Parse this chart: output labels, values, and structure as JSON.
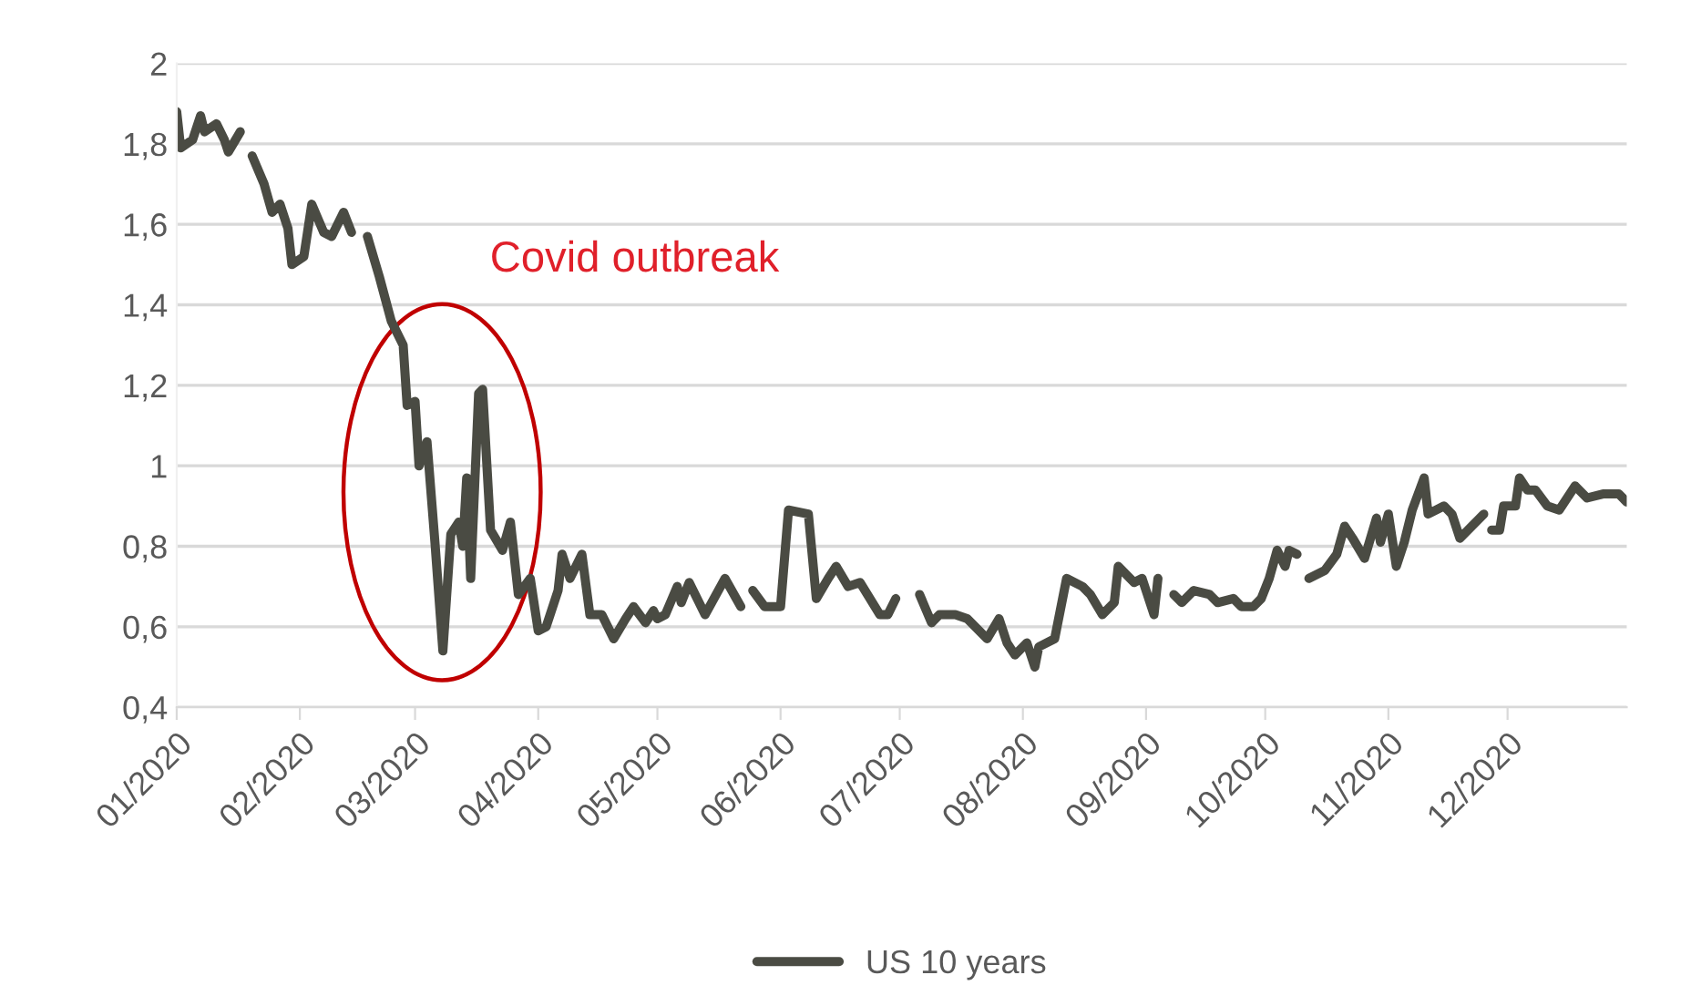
{
  "chart_data": {
    "type": "line",
    "x": [
      "2020-01-01",
      "2020-01-02",
      "2020-01-05",
      "2020-01-07",
      "2020-01-08",
      "2020-01-11",
      "2020-01-13",
      "2020-01-14",
      "2020-01-17",
      "2020-01-18",
      "2020-01-20",
      "2020-01-23",
      "2020-01-25",
      "2020-01-27",
      "2020-01-29",
      "2020-01-30",
      "2020-02-02",
      "2020-02-04",
      "2020-02-07",
      "2020-02-09",
      "2020-02-12",
      "2020-02-14",
      "2020-02-16",
      "2020-02-18",
      "2020-02-21",
      "2020-02-24",
      "2020-02-27",
      "2020-02-28",
      "2020-03-01",
      "2020-03-02",
      "2020-03-04",
      "2020-03-06",
      "2020-03-08",
      "2020-03-10",
      "2020-03-12",
      "2020-03-13",
      "2020-03-14",
      "2020-03-15",
      "2020-03-17",
      "2020-03-18",
      "2020-03-20",
      "2020-03-23",
      "2020-03-25",
      "2020-03-27",
      "2020-03-30",
      "2020-04-01",
      "2020-04-03",
      "2020-04-06",
      "2020-04-07",
      "2020-04-09",
      "2020-04-12",
      "2020-04-14",
      "2020-04-17",
      "2020-04-20",
      "2020-04-23",
      "2020-04-25",
      "2020-04-28",
      "2020-04-30",
      "2020-05-01",
      "2020-05-03",
      "2020-05-06",
      "2020-05-07",
      "2020-05-09",
      "2020-05-13",
      "2020-05-18",
      "2020-05-22",
      "2020-05-24",
      "2020-05-25",
      "2020-05-28",
      "2020-06-01",
      "2020-06-03",
      "2020-06-08",
      "2020-06-10",
      "2020-06-13",
      "2020-06-15",
      "2020-06-18",
      "2020-06-21",
      "2020-06-26",
      "2020-06-28",
      "2020-06-30",
      "2020-07-02",
      "2020-07-06",
      "2020-07-09",
      "2020-07-11",
      "2020-07-15",
      "2020-07-18",
      "2020-07-23",
      "2020-07-26",
      "2020-07-28",
      "2020-07-30",
      "2020-08-02",
      "2020-08-04",
      "2020-08-05",
      "2020-08-09",
      "2020-08-12",
      "2020-08-16",
      "2020-08-18",
      "2020-08-21",
      "2020-08-24",
      "2020-08-25",
      "2020-08-29",
      "2020-08-31",
      "2020-09-03",
      "2020-09-04",
      "2020-09-06",
      "2020-09-08",
      "2020-09-10",
      "2020-09-13",
      "2020-09-17",
      "2020-09-19",
      "2020-09-23",
      "2020-09-25",
      "2020-09-28",
      "2020-09-30",
      "2020-10-02",
      "2020-10-04",
      "2020-10-06",
      "2020-10-07",
      "2020-10-09",
      "2020-10-11",
      "2020-10-12",
      "2020-10-16",
      "2020-10-19",
      "2020-10-21",
      "2020-10-23",
      "2020-10-26",
      "2020-10-29",
      "2020-10-30",
      "2020-11-01",
      "2020-11-03",
      "2020-11-05",
      "2020-11-07",
      "2020-11-10",
      "2020-11-11",
      "2020-11-15",
      "2020-11-17",
      "2020-11-19",
      "2020-11-22",
      "2020-11-25",
      "2020-11-26",
      "2020-11-27",
      "2020-11-29",
      "2020-11-30",
      "2020-12-03",
      "2020-12-04",
      "2020-12-06",
      "2020-12-08",
      "2020-12-11",
      "2020-12-14",
      "2020-12-18",
      "2020-12-21",
      "2020-12-25",
      "2020-12-29",
      "2020-12-31"
    ],
    "series": [
      {
        "name": "US 10 years",
        "color": "#4a4b43",
        "values": [
          1.88,
          1.79,
          1.81,
          1.87,
          1.83,
          1.85,
          1.81,
          1.78,
          1.83,
          null,
          1.77,
          1.7,
          1.63,
          1.65,
          1.59,
          1.5,
          1.52,
          1.65,
          1.58,
          1.57,
          1.63,
          1.58,
          null,
          1.57,
          1.47,
          1.36,
          1.3,
          1.15,
          1.16,
          1.0,
          1.06,
          0.81,
          0.54,
          0.83,
          0.86,
          0.8,
          0.97,
          0.72,
          1.18,
          1.19,
          0.84,
          0.79,
          0.86,
          0.68,
          0.72,
          0.59,
          0.6,
          0.69,
          0.78,
          0.72,
          0.78,
          0.63,
          0.63,
          0.57,
          0.62,
          0.65,
          0.61,
          0.64,
          0.62,
          0.63,
          0.7,
          0.66,
          0.71,
          0.63,
          0.72,
          0.65,
          null,
          0.69,
          0.65,
          0.65,
          0.89,
          0.88,
          0.67,
          0.72,
          0.75,
          0.7,
          0.71,
          0.63,
          0.63,
          0.67,
          null,
          0.68,
          0.61,
          0.63,
          0.63,
          0.62,
          0.57,
          0.62,
          0.56,
          0.53,
          0.56,
          0.5,
          0.55,
          0.57,
          0.72,
          0.7,
          0.68,
          0.63,
          0.66,
          0.75,
          0.71,
          0.72,
          0.63,
          0.72,
          null,
          0.68,
          0.66,
          0.69,
          0.68,
          0.66,
          0.67,
          0.65,
          0.65,
          0.67,
          0.72,
          0.79,
          0.75,
          0.79,
          0.78,
          null,
          0.72,
          0.74,
          0.78,
          0.85,
          0.82,
          0.77,
          0.87,
          0.81,
          0.88,
          0.75,
          0.81,
          0.89,
          0.97,
          0.88,
          0.9,
          0.88,
          0.82,
          0.85,
          0.88,
          null,
          0.84,
          0.84,
          0.9,
          0.9,
          0.97,
          0.94,
          0.94,
          0.9,
          0.89,
          0.95,
          0.92,
          0.93,
          0.93,
          0.91
        ]
      }
    ],
    "xlim": [
      "2020-01-01",
      "2020-12-31"
    ],
    "xticks": [
      {
        "value": "2020-01-01",
        "label": "01/2020"
      },
      {
        "value": "2020-02-01",
        "label": "02/2020"
      },
      {
        "value": "2020-03-01",
        "label": "03/2020"
      },
      {
        "value": "2020-04-01",
        "label": "04/2020"
      },
      {
        "value": "2020-05-01",
        "label": "05/2020"
      },
      {
        "value": "2020-06-01",
        "label": "06/2020"
      },
      {
        "value": "2020-07-01",
        "label": "07/2020"
      },
      {
        "value": "2020-08-01",
        "label": "08/2020"
      },
      {
        "value": "2020-09-01",
        "label": "09/2020"
      },
      {
        "value": "2020-10-01",
        "label": "10/2020"
      },
      {
        "value": "2020-11-01",
        "label": "11/2020"
      },
      {
        "value": "2020-12-01",
        "label": "12/2020"
      }
    ],
    "ylim": [
      0.4,
      2
    ],
    "yticks": [
      {
        "value": 0.4,
        "label": "0,4"
      },
      {
        "value": 0.6,
        "label": "0,6"
      },
      {
        "value": 0.8,
        "label": "0,8"
      },
      {
        "value": 1,
        "label": "1"
      },
      {
        "value": 1.2,
        "label": "1,2"
      },
      {
        "value": 1.4,
        "label": "1,4"
      },
      {
        "value": 1.6,
        "label": "1,6"
      },
      {
        "value": 1.8,
        "label": "1,8"
      },
      {
        "value": 2,
        "label": "2"
      }
    ],
    "grid": "y",
    "legend": "bottom",
    "line_style": "solid",
    "marker": "none",
    "annotations": [
      "Covid outbreak"
    ]
  }
}
